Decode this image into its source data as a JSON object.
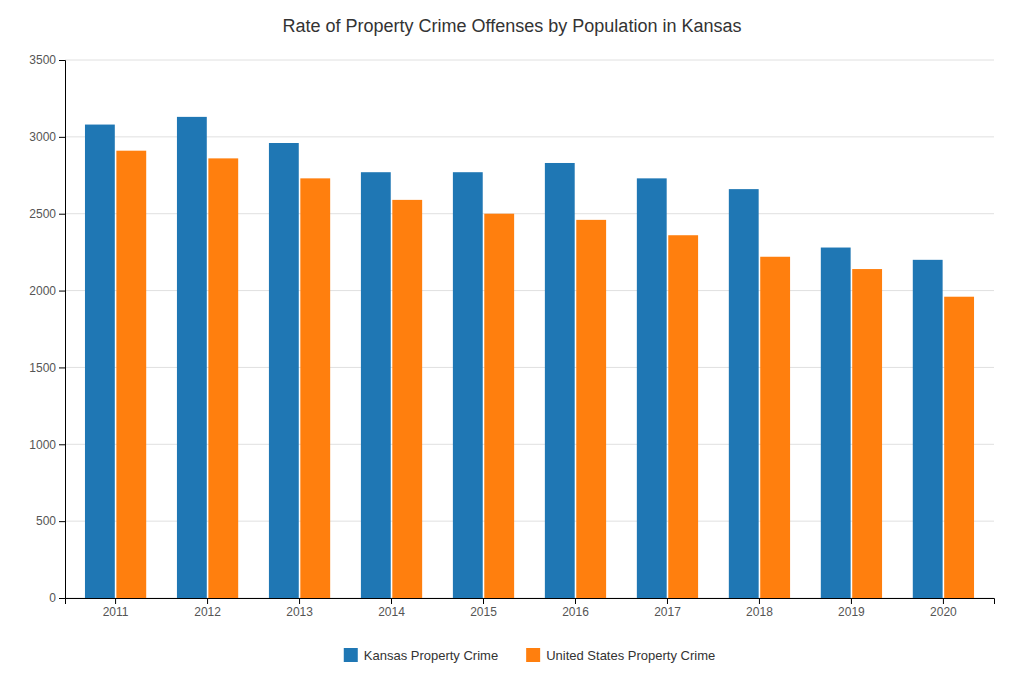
{
  "chart_data": {
    "type": "bar",
    "title": "Rate of Property Crime Offenses by Population in Kansas",
    "categories": [
      "2011",
      "2012",
      "2013",
      "2014",
      "2015",
      "2016",
      "2017",
      "2018",
      "2019",
      "2020"
    ],
    "series": [
      {
        "name": "Kansas Property Crime",
        "values": [
          3080,
          3130,
          2960,
          2770,
          2770,
          2830,
          2730,
          2660,
          2280,
          2200
        ]
      },
      {
        "name": "United States Property Crime",
        "values": [
          2910,
          2860,
          2730,
          2590,
          2500,
          2460,
          2360,
          2220,
          2140,
          1960
        ]
      }
    ],
    "ylim": [
      0,
      3500
    ],
    "yticks": [
      0,
      500,
      1000,
      1500,
      2000,
      2500,
      3000,
      3500
    ],
    "grid": true,
    "legend": "bottom"
  }
}
